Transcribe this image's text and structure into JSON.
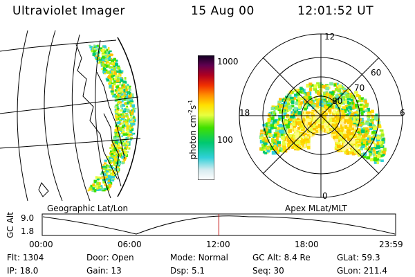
{
  "header": {
    "instrument": "Ultraviolet Imager",
    "date": "15 Aug 00",
    "time": "12:01:52 UT"
  },
  "colorbar": {
    "unit_label": "photon cm-2s-1",
    "ticks": [
      "1000",
      "100"
    ]
  },
  "polar_plot": {
    "mlt_labels": {
      "top": "12",
      "left": "18",
      "right": "6",
      "bottom": "0"
    },
    "lat_labels": [
      "60",
      "70",
      "80"
    ]
  },
  "panels": {
    "left_caption": "Geographic Lat/Lon",
    "right_caption": "Apex MLat/MLT"
  },
  "orbit_plot": {
    "ylabel": "GC Alt",
    "yticks": [
      "9.0",
      "1.8"
    ],
    "xticks": [
      "00:00",
      "06:00",
      "12:00",
      "18:00",
      "23:59"
    ],
    "current_time_fraction": 0.5,
    "marker_color": "#c00000"
  },
  "status": {
    "flt": {
      "label": "Flt:",
      "value": "1304"
    },
    "ip": {
      "label": "IP:",
      "value": "18.0"
    },
    "door": {
      "label": "Door:",
      "value": "Open"
    },
    "gain": {
      "label": "Gain:",
      "value": "13"
    },
    "mode": {
      "label": "Mode:",
      "value": "Normal"
    },
    "dsp": {
      "label": "Dsp:",
      "value": "5.1"
    },
    "gcalt": {
      "label": "GC Alt:",
      "value": "8.4 Re"
    },
    "seq": {
      "label": "Seq:",
      "value": "30"
    },
    "glat": {
      "label": "GLat:",
      "value": "59.3"
    },
    "glon": {
      "label": "GLon:",
      "value": "211.4"
    }
  }
}
